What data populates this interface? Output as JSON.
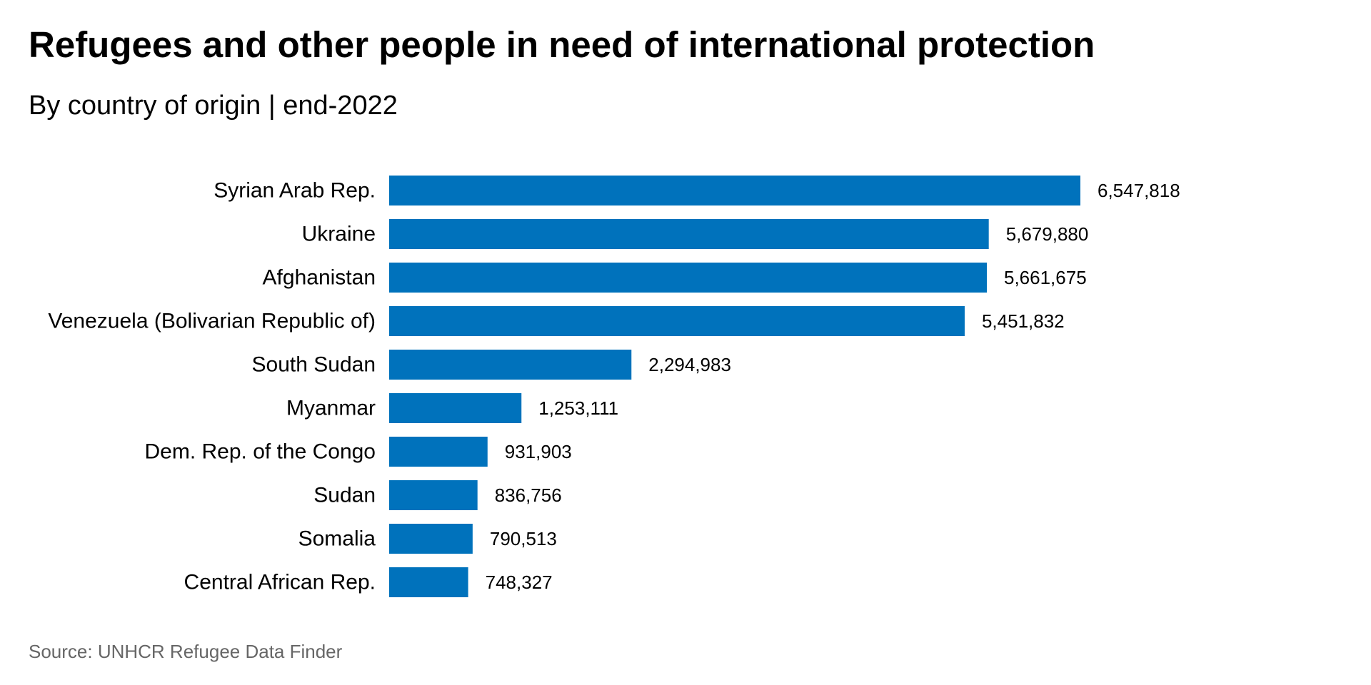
{
  "title": "Refugees and other people in need of international protection",
  "subtitle": "By country of origin | end-2022",
  "source": "Source: UNHCR Refugee Data Finder",
  "colors": {
    "bar": "#0072BC"
  },
  "chart_data": {
    "type": "bar",
    "orientation": "horizontal",
    "title": "Refugees and other people in need of international protection",
    "subtitle": "By country of origin | end-2022",
    "xlabel": "",
    "ylabel": "",
    "xlim": [
      0,
      6547818
    ],
    "grid": false,
    "legend": "none",
    "categories": [
      "Syrian Arab Rep.",
      "Ukraine",
      "Afghanistan",
      "Venezuela (Bolivarian Republic of)",
      "South Sudan",
      "Myanmar",
      "Dem. Rep. of the Congo",
      "Sudan",
      "Somalia",
      "Central African Rep."
    ],
    "values": [
      6547818,
      5679880,
      5661675,
      5451832,
      2294983,
      1253111,
      931903,
      836756,
      790513,
      748327
    ],
    "data_labels": [
      "6,547,818",
      "5,679,880",
      "5,661,675",
      "5,451,832",
      "2,294,983",
      "1,253,111",
      "931,903",
      "836,756",
      "790,513",
      "748,327"
    ]
  }
}
